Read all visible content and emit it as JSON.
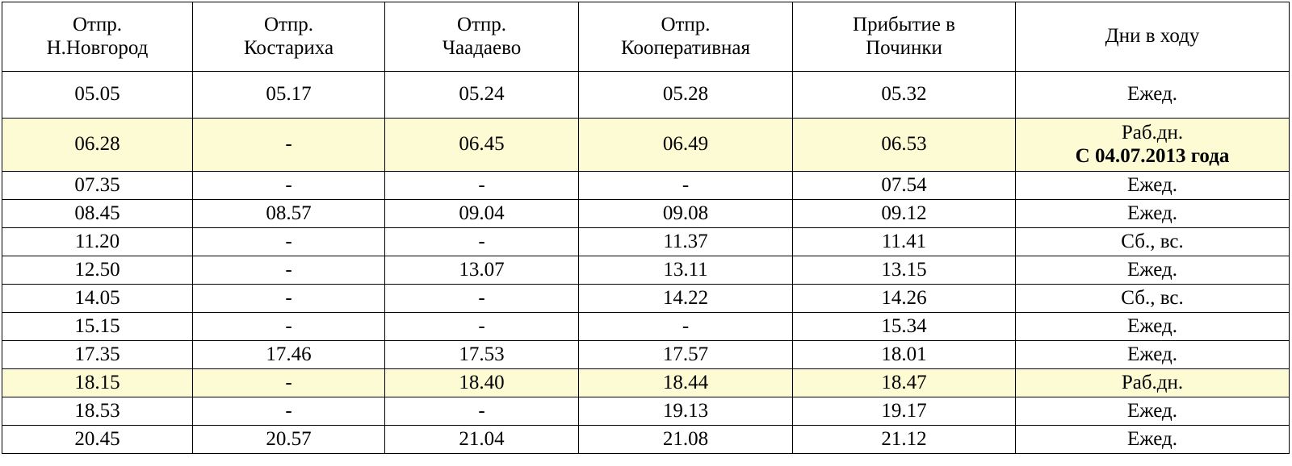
{
  "table": {
    "header": [
      [
        "Отпр.",
        "Н.Новгород"
      ],
      [
        "Отпр.",
        "Костариха"
      ],
      [
        "Отпр.",
        "Чаадаево"
      ],
      [
        "Отпр.",
        "Кооперативная"
      ],
      [
        "Прибытие в",
        "Починки"
      ],
      [
        "Дни в ходу"
      ]
    ],
    "rows": [
      {
        "cells": [
          "05.05",
          "05.17",
          "05.24",
          "05.28",
          "05.32",
          "Ежед."
        ]
      },
      {
        "cells": [
          "06.28",
          "-",
          "06.45",
          "06.49",
          "06.53",
          [
            "Раб.дн.",
            "С 04.07.2013 года"
          ]
        ],
        "highlight": true
      },
      {
        "cells": [
          "07.35",
          "-",
          "-",
          "-",
          "07.54",
          "Ежед."
        ]
      },
      {
        "cells": [
          "08.45",
          "08.57",
          "09.04",
          "09.08",
          "09.12",
          "Ежед."
        ]
      },
      {
        "cells": [
          "11.20",
          "-",
          "-",
          "11.37",
          "11.41",
          "Сб., вс."
        ]
      },
      {
        "cells": [
          "12.50",
          "-",
          "13.07",
          "13.11",
          "13.15",
          "Ежед."
        ]
      },
      {
        "cells": [
          "14.05",
          "-",
          "-",
          "14.22",
          "14.26",
          "Сб., вс."
        ]
      },
      {
        "cells": [
          "15.15",
          "-",
          "-",
          "-",
          "15.34",
          "Ежед."
        ]
      },
      {
        "cells": [
          "17.35",
          "17.46",
          "17.53",
          "17.57",
          "18.01",
          "Ежед."
        ]
      },
      {
        "cells": [
          "18.15",
          "-",
          "18.40",
          "18.44",
          "18.47",
          "Раб.дн."
        ],
        "highlight": true
      },
      {
        "cells": [
          "18.53",
          "-",
          "-",
          "19.13",
          "19.17",
          "Ежед."
        ]
      },
      {
        "cells": [
          "20.45",
          "20.57",
          "21.04",
          "21.08",
          "21.12",
          "Ежед."
        ]
      }
    ]
  }
}
